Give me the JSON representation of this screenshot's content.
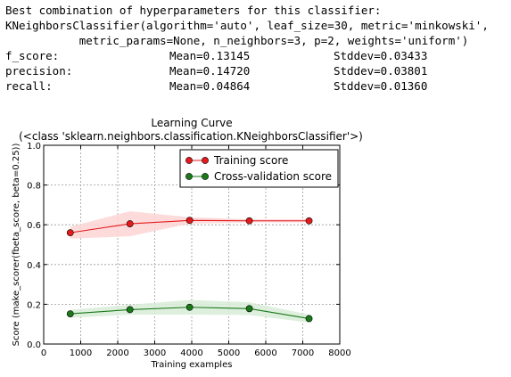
{
  "output": {
    "header": "Best combination of hyperparameters for this classifier:",
    "classifier_line1": "KNeighborsClassifier(algorithm='auto', leaf_size=30, metric='minkowski',",
    "classifier_line2": "           metric_params=None, n_neighbors=3, p=2, weights='uniform')",
    "metrics": [
      {
        "name": "f_score:",
        "mean": "Mean=0.13145",
        "std": "Stddev=0.03433"
      },
      {
        "name": "precision:",
        "mean": "Mean=0.14720",
        "std": "Stddev=0.03801"
      },
      {
        "name": "recall:",
        "mean": "Mean=0.04864",
        "std": "Stddev=0.01360"
      }
    ]
  },
  "chart_data": {
    "type": "line",
    "title": "Learning Curve",
    "subtitle": "(<class 'sklearn.neighbors.classification.KNeighborsClassifier'>)",
    "xlabel": "Training examples",
    "ylabel": "Score (make_scorer(fbeta_score, beta=0.25))",
    "xlim": [
      0,
      8000
    ],
    "ylim": [
      0.0,
      1.0
    ],
    "xticks": [
      0,
      1000,
      2000,
      3000,
      4000,
      5000,
      6000,
      7000,
      8000
    ],
    "yticks": [
      0.0,
      0.2,
      0.4,
      0.6,
      0.8,
      1.0
    ],
    "xtick_labels": [
      "0",
      "1000",
      "2000",
      "3000",
      "4000",
      "5000",
      "6000",
      "7000",
      "8000"
    ],
    "ytick_labels": [
      "0.0",
      "0.2",
      "0.4",
      "0.6",
      "0.8",
      "1.0"
    ],
    "grid": true,
    "legend": "top-right",
    "x": [
      717,
      2330,
      3943,
      5556,
      7170
    ],
    "series": [
      {
        "name": "Training score",
        "color": "#e41a1c",
        "fill": "#fdd5d5",
        "values": [
          0.56,
          0.605,
          0.622,
          0.62,
          0.62
        ],
        "upper": [
          0.59,
          0.668,
          0.638,
          0.628,
          0.628
        ],
        "lower": [
          0.53,
          0.542,
          0.606,
          0.612,
          0.612
        ]
      },
      {
        "name": "Cross-validation score",
        "color": "#1a7a1a",
        "fill": "#d8ecd8",
        "values": [
          0.152,
          0.173,
          0.185,
          0.178,
          0.128
        ],
        "upper": [
          0.172,
          0.198,
          0.222,
          0.21,
          0.148
        ],
        "lower": [
          0.132,
          0.148,
          0.148,
          0.146,
          0.108
        ]
      }
    ]
  }
}
